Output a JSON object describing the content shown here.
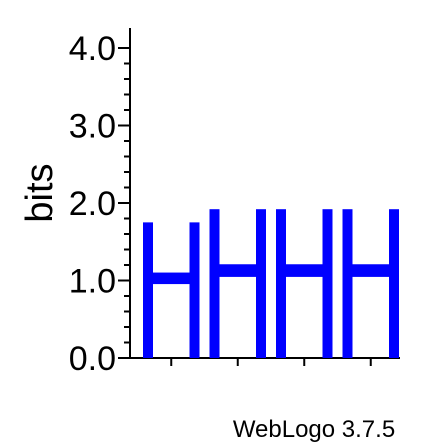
{
  "chart_data": {
    "type": "logo",
    "ylabel": "bits",
    "ylim": [
      0,
      4
    ],
    "yticks": [
      "0.0",
      "1.0",
      "2.0",
      "3.0",
      "4.0"
    ],
    "letter_color": "#0000ff",
    "positions": [
      {
        "letter": "H",
        "bits": 1.75
      },
      {
        "letter": "H",
        "bits": 1.92
      },
      {
        "letter": "H",
        "bits": 1.92
      },
      {
        "letter": "H",
        "bits": 1.92
      }
    ]
  },
  "footer": {
    "text": "WebLogo 3.7.5"
  }
}
